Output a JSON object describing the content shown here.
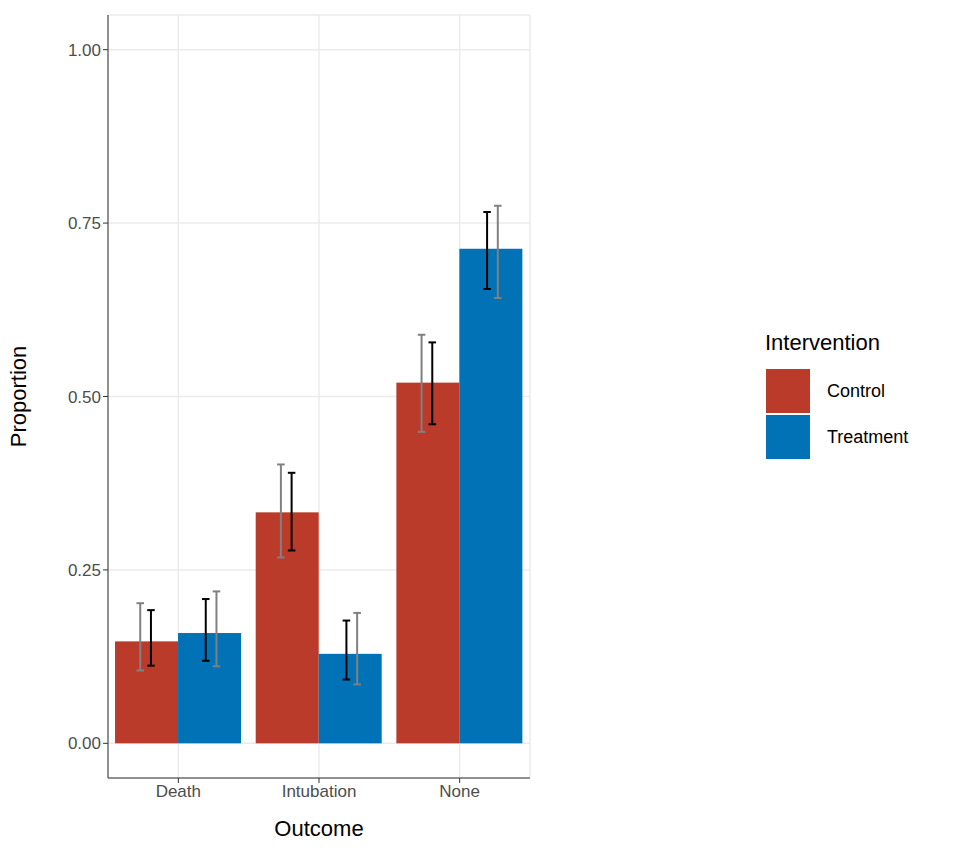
{
  "chart_data": {
    "type": "bar",
    "x_label": "Outcome",
    "y_label": "Proportion",
    "legend_title": "Intervention",
    "categories": [
      "Death",
      "Intubation",
      "None"
    ],
    "series": [
      {
        "name": "Control",
        "color": "#bb3b2b",
        "values": [
          0.147,
          0.333,
          0.52
        ],
        "error_bars": [
          {
            "color": "#808080",
            "low": [
              0.105,
              0.268,
              0.449
            ],
            "high": [
              0.202,
              0.402,
              0.589
            ]
          },
          {
            "color": "#000000",
            "low": [
              0.112,
              0.278,
              0.46
            ],
            "high": [
              0.192,
              0.39,
              0.578
            ]
          }
        ]
      },
      {
        "name": "Treatment",
        "color": "#0072b5",
        "values": [
          0.159,
          0.129,
          0.713
        ],
        "error_bars": [
          {
            "color": "#000000",
            "low": [
              0.119,
              0.092,
              0.655
            ],
            "high": [
              0.208,
              0.177,
              0.766
            ]
          },
          {
            "color": "#808080",
            "low": [
              0.111,
              0.085,
              0.642
            ],
            "high": [
              0.219,
              0.188,
              0.775
            ]
          }
        ]
      }
    ],
    "ylim": [
      -0.05,
      1.05
    ],
    "yticks": [
      {
        "value": 0,
        "label": "0.00"
      },
      {
        "value": 0.25,
        "label": "0.25"
      },
      {
        "value": 0.5,
        "label": "0.50"
      },
      {
        "value": 0.75,
        "label": "0.75"
      },
      {
        "value": 1,
        "label": "1.00"
      }
    ],
    "grid": true,
    "legend": "right"
  }
}
